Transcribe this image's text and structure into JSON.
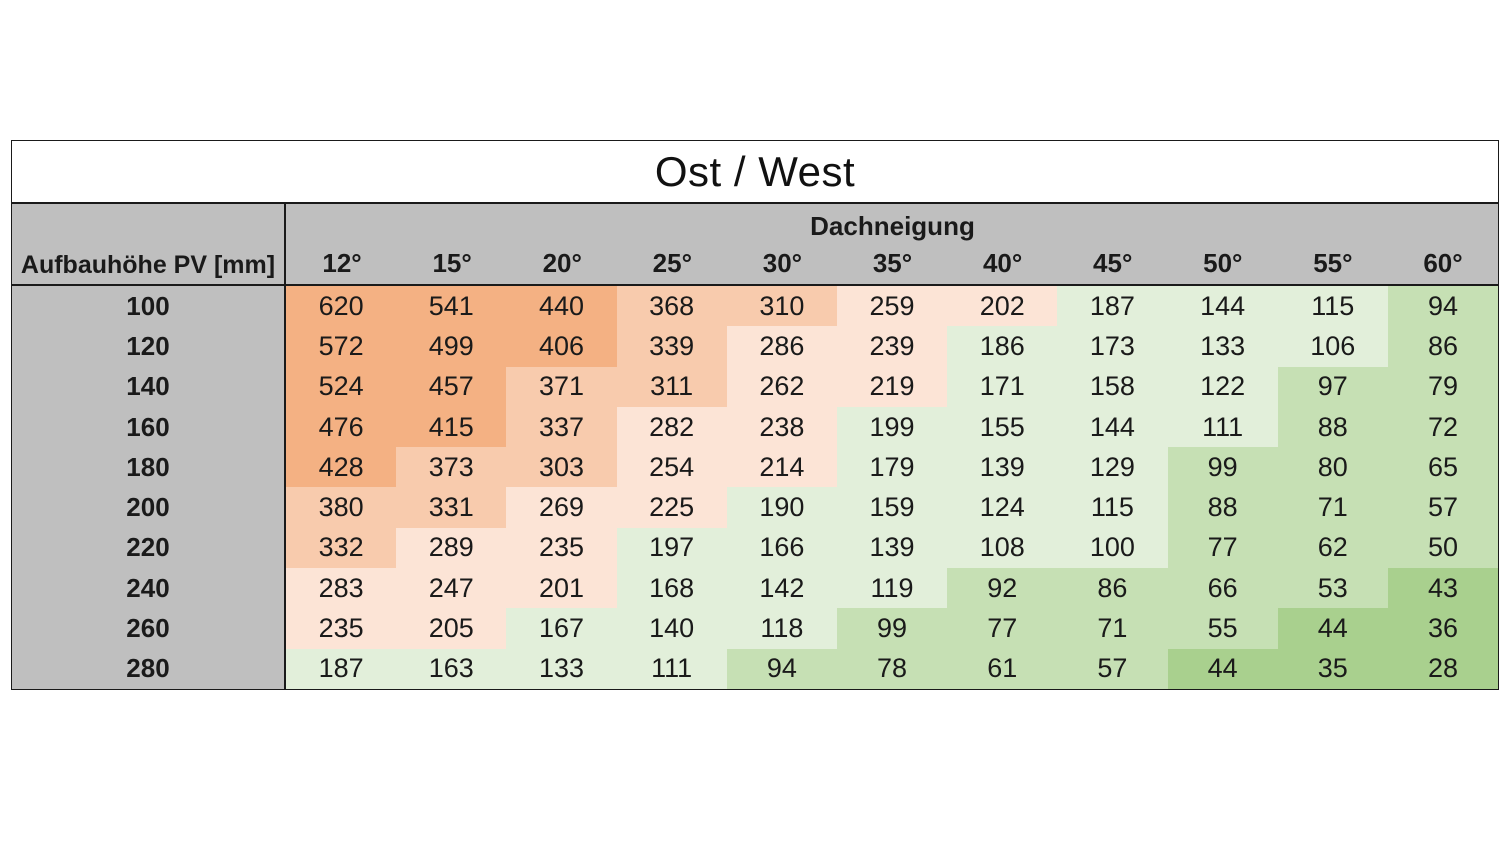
{
  "chart_data": {
    "type": "table",
    "title": "Ost / West",
    "row_header_label": "Aufbauhöhe PV [mm]",
    "column_group_label": "Dachneigung",
    "columns": [
      "12°",
      "15°",
      "20°",
      "25°",
      "30°",
      "35°",
      "40°",
      "45°",
      "50°",
      "55°",
      "60°"
    ],
    "rows": [
      {
        "label": "100",
        "values": [
          620,
          541,
          440,
          368,
          310,
          259,
          202,
          187,
          144,
          115,
          94
        ]
      },
      {
        "label": "120",
        "values": [
          572,
          499,
          406,
          339,
          286,
          239,
          186,
          173,
          133,
          106,
          86
        ]
      },
      {
        "label": "140",
        "values": [
          524,
          457,
          371,
          311,
          262,
          219,
          171,
          158,
          122,
          97,
          79
        ]
      },
      {
        "label": "160",
        "values": [
          476,
          415,
          337,
          282,
          238,
          199,
          155,
          144,
          111,
          88,
          72
        ]
      },
      {
        "label": "180",
        "values": [
          428,
          373,
          303,
          254,
          214,
          179,
          139,
          129,
          99,
          80,
          65
        ]
      },
      {
        "label": "200",
        "values": [
          380,
          331,
          269,
          225,
          190,
          159,
          124,
          115,
          88,
          71,
          57
        ]
      },
      {
        "label": "220",
        "values": [
          332,
          289,
          235,
          197,
          166,
          139,
          108,
          100,
          77,
          62,
          50
        ]
      },
      {
        "label": "240",
        "values": [
          283,
          247,
          201,
          168,
          142,
          119,
          92,
          86,
          66,
          53,
          43
        ]
      },
      {
        "label": "260",
        "values": [
          235,
          205,
          167,
          140,
          118,
          99,
          77,
          71,
          55,
          44,
          36
        ]
      },
      {
        "label": "280",
        "values": [
          187,
          163,
          133,
          111,
          94,
          78,
          61,
          57,
          44,
          35,
          28
        ]
      }
    ],
    "color_scale": {
      "orange_dark": "#f4b183",
      "orange_mid": "#f8cbad",
      "orange_light": "#fce4d6",
      "green_light": "#e2efda",
      "green_mid": "#c6e0b4",
      "green_dark": "#a9d08e"
    },
    "header_bg": "#bfbfbf"
  }
}
